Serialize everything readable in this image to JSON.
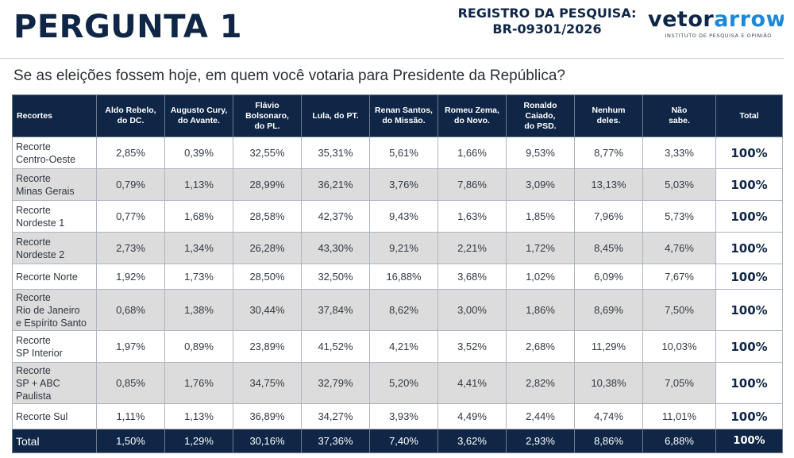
{
  "header": {
    "title": "PERGUNTA 1",
    "registry_line1": "REGISTRO DA PESQUISA:",
    "registry_line2": "BR-09301/2026",
    "logo_part1": "vetor",
    "logo_part2": "arrow",
    "logo_subtitle": "INSTITUTO DE PESQUISA E OPINIÃO"
  },
  "question": "Se as eleições fossem hoje, em quem você votaria para Presidente da República?",
  "table": {
    "columns": [
      "Recortes",
      "Aldo Rebelo,\ndo DC.",
      "Augusto Cury,\ndo Avante.",
      "Flávio\nBolsonaro,\ndo PL.",
      "Lula, do PT.",
      "Renan Santos,\ndo Missão.",
      "Romeu Zema,\ndo Novo.",
      "Ronaldo\nCaiado,\ndo PSD.",
      "Nenhum\ndeles.",
      "Não\nsabe.",
      "Total"
    ],
    "rows": [
      {
        "cut": "Recorte\nCentro-Oeste",
        "values": [
          "2,85%",
          "0,39%",
          "32,55%",
          "35,31%",
          "5,61%",
          "1,66%",
          "9,53%",
          "8,77%",
          "3,33%"
        ],
        "total": "100%"
      },
      {
        "cut": "Recorte\nMinas Gerais",
        "values": [
          "0,79%",
          "1,13%",
          "28,99%",
          "36,21%",
          "3,76%",
          "7,86%",
          "3,09%",
          "13,13%",
          "5,03%"
        ],
        "total": "100%"
      },
      {
        "cut": "Recorte\nNordeste 1",
        "values": [
          "0,77%",
          "1,68%",
          "28,58%",
          "42,37%",
          "9,43%",
          "1,63%",
          "1,85%",
          "7,96%",
          "5,73%"
        ],
        "total": "100%"
      },
      {
        "cut": "Recorte\nNordeste 2",
        "values": [
          "2,73%",
          "1,34%",
          "26,28%",
          "43,30%",
          "9,21%",
          "2,21%",
          "1,72%",
          "8,45%",
          "4,76%"
        ],
        "total": "100%"
      },
      {
        "cut": "Recorte Norte",
        "values": [
          "1,92%",
          "1,73%",
          "28,50%",
          "32,50%",
          "16,88%",
          "3,68%",
          "1,02%",
          "6,09%",
          "7,67%"
        ],
        "total": "100%"
      },
      {
        "cut": "Recorte\nRio de Janeiro\ne Espírito Santo",
        "values": [
          "0,68%",
          "1,38%",
          "30,44%",
          "37,84%",
          "8,62%",
          "3,00%",
          "1,86%",
          "8,69%",
          "7,50%"
        ],
        "total": "100%"
      },
      {
        "cut": "Recorte\nSP Interior",
        "values": [
          "1,97%",
          "0,89%",
          "23,89%",
          "41,52%",
          "4,21%",
          "3,52%",
          "2,68%",
          "11,29%",
          "10,03%"
        ],
        "total": "100%"
      },
      {
        "cut": "Recorte\nSP + ABC\nPaulista",
        "values": [
          "0,85%",
          "1,76%",
          "34,75%",
          "32,79%",
          "5,20%",
          "4,41%",
          "2,82%",
          "10,38%",
          "7,05%"
        ],
        "total": "100%"
      },
      {
        "cut": "Recorte Sul",
        "values": [
          "1,11%",
          "1,13%",
          "36,89%",
          "34,27%",
          "3,93%",
          "4,49%",
          "2,44%",
          "4,74%",
          "11,01%"
        ],
        "total": "100%"
      }
    ],
    "footer": {
      "cut": "Total",
      "values": [
        "1,50%",
        "1,29%",
        "30,16%",
        "37,36%",
        "7,40%",
        "3,62%",
        "2,93%",
        "8,86%",
        "6,88%"
      ],
      "total": "100%"
    }
  },
  "colors": {
    "navy": "#0f2646",
    "accent_blue": "#1e88d6",
    "row_alt": "#dcdcdc"
  }
}
